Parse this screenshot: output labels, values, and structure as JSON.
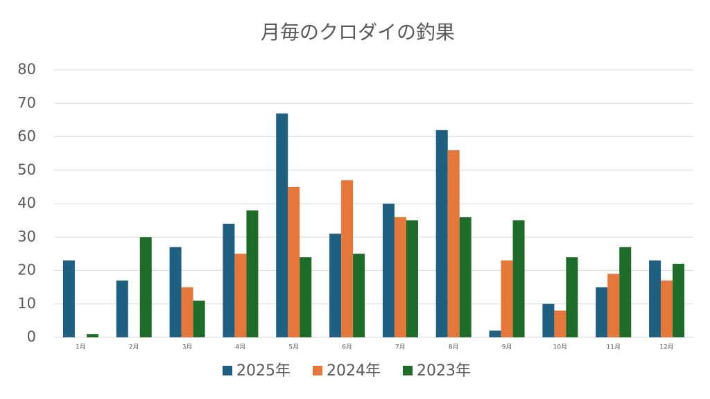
{
  "chart_data": {
    "type": "bar",
    "title": "月毎のクロダイの釣果",
    "categories": [
      "1月",
      "2月",
      "3月",
      "4月",
      "5月",
      "6月",
      "7月",
      "8月",
      "9月",
      "10月",
      "11月",
      "12月"
    ],
    "series": [
      {
        "name": "2025年",
        "color": "#1f5f80",
        "values": [
          23,
          17,
          27,
          34,
          67,
          31,
          40,
          62,
          2,
          10,
          15,
          23
        ]
      },
      {
        "name": "2024年",
        "color": "#e5773a",
        "values": [
          0,
          0,
          15,
          25,
          45,
          47,
          36,
          56,
          23,
          8,
          19,
          17
        ]
      },
      {
        "name": "2023年",
        "color": "#1e6b2a",
        "values": [
          1,
          30,
          11,
          38,
          24,
          25,
          35,
          36,
          35,
          24,
          27,
          22
        ]
      }
    ],
    "ylim": [
      0,
      80
    ],
    "yticks": [
      0,
      10,
      20,
      30,
      40,
      50,
      60,
      70,
      80
    ],
    "grid": true,
    "legend": "bottom"
  }
}
